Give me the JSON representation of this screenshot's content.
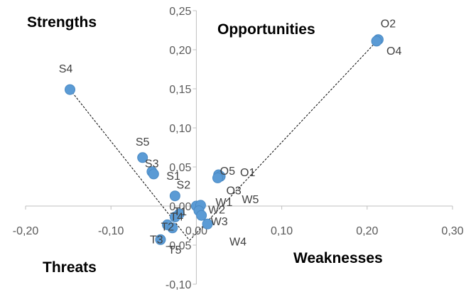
{
  "chart_data": {
    "type": "scatter",
    "xlim": [
      -0.2,
      0.3
    ],
    "ylim": [
      -0.1,
      0.25
    ],
    "x_ticks": [
      "-0,20",
      "-0,10",
      "0,00",
      "0,10",
      "0,20",
      "0,30"
    ],
    "x_tick_values": [
      -0.2,
      -0.1,
      0.0,
      0.1,
      0.2,
      0.3
    ],
    "y_ticks": [
      "0,25",
      "0,20",
      "0,15",
      "0,10",
      "0,05",
      "0,00",
      "-0,05",
      "-0,10"
    ],
    "y_tick_values": [
      0.25,
      0.2,
      0.15,
      0.1,
      0.05,
      0.0,
      -0.05,
      -0.1
    ],
    "grid": false,
    "marker_color": "#5b9bd5",
    "quadrant_labels": {
      "top_left": "Strengths",
      "top_right": "Opportunities",
      "bottom_left": "Threats",
      "bottom_right": "Weaknesses"
    },
    "trend_lines": [
      {
        "from": [
          -0.148,
          0.149
        ],
        "to": [
          -0.008,
          -0.044
        ]
      },
      {
        "from": [
          -0.008,
          -0.044
        ],
        "to": [
          0.213,
          0.213
        ]
      }
    ],
    "points": [
      {
        "label": "S4",
        "x": -0.148,
        "y": 0.149
      },
      {
        "label": "S5",
        "x": -0.063,
        "y": 0.062
      },
      {
        "label": "S3",
        "x": -0.052,
        "y": 0.044
      },
      {
        "label": "S1",
        "x": -0.05,
        "y": 0.041
      },
      {
        "label": "S2",
        "x": -0.025,
        "y": 0.013
      },
      {
        "label": "O2",
        "x": 0.213,
        "y": 0.213
      },
      {
        "label": "O4",
        "x": 0.211,
        "y": 0.211
      },
      {
        "label": "O5",
        "x": 0.026,
        "y": 0.04
      },
      {
        "label": "O1",
        "x": 0.028,
        "y": 0.038
      },
      {
        "label": "O3",
        "x": 0.025,
        "y": 0.036
      },
      {
        "label": "W1",
        "x": 0.0,
        "y": 0.0
      },
      {
        "label": "W5",
        "x": 0.005,
        "y": 0.001
      },
      {
        "label": "W2",
        "x": 0.003,
        "y": -0.006
      },
      {
        "label": "W3",
        "x": 0.006,
        "y": -0.012
      },
      {
        "label": "W4",
        "x": 0.013,
        "y": -0.023
      },
      {
        "label": "T1",
        "x": -0.02,
        "y": -0.01
      },
      {
        "label": "T4",
        "x": -0.025,
        "y": -0.014
      },
      {
        "label": "T2",
        "x": -0.034,
        "y": -0.024
      },
      {
        "label": "T5",
        "x": -0.028,
        "y": -0.028
      },
      {
        "label": "T3",
        "x": -0.042,
        "y": -0.043
      }
    ]
  }
}
